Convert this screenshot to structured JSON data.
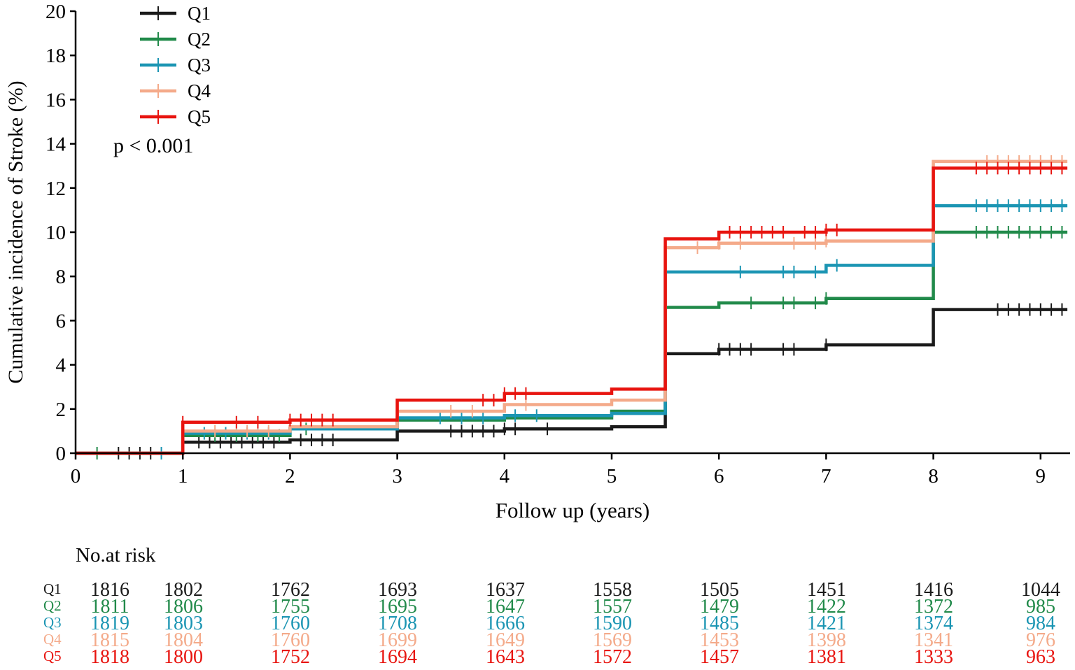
{
  "chart_data": {
    "type": "line",
    "subtype": "kaplan-meier-cumulative-incidence",
    "title": "",
    "xlabel": "Follow up (years)",
    "ylabel": "Cumulative incidence of Stroke (%)",
    "xlim": [
      0,
      9.25
    ],
    "ylim": [
      0,
      20
    ],
    "xticks": [
      "0",
      "1",
      "2",
      "3",
      "4",
      "5",
      "6",
      "7",
      "8",
      "9"
    ],
    "yticks": [
      "0",
      "2",
      "4",
      "6",
      "8",
      "10",
      "12",
      "14",
      "16",
      "18",
      "20"
    ],
    "annotation": "p < 0.001",
    "legend_position": "top-left",
    "colors": {
      "Q1": "#1a1a1a",
      "Q2": "#218a4a",
      "Q3": "#1b95b3",
      "Q4": "#f4aa8a",
      "Q5": "#e8140f"
    },
    "series": [
      {
        "name": "Q1",
        "steps": [
          [
            0,
            0
          ],
          [
            1,
            0.5
          ],
          [
            2,
            0.6
          ],
          [
            3,
            1.0
          ],
          [
            4,
            1.1
          ],
          [
            5,
            1.2
          ],
          [
            5.5,
            1.6
          ],
          [
            5.5,
            4.5
          ],
          [
            6,
            4.7
          ],
          [
            7,
            4.9
          ],
          [
            8,
            6.5
          ],
          [
            9.25,
            6.5
          ]
        ],
        "censor_x": [
          0.4,
          0.5,
          0.6,
          0.7,
          1.15,
          1.25,
          1.35,
          1.45,
          1.55,
          1.65,
          1.75,
          1.85,
          2.1,
          2.2,
          2.3,
          2.4,
          3.5,
          3.6,
          3.7,
          3.8,
          3.9,
          4.0,
          4.1,
          4.4,
          6.0,
          6.1,
          6.2,
          6.3,
          6.6,
          6.7,
          7.0,
          8.6,
          8.7,
          8.8,
          8.9,
          9.0,
          9.1,
          9.2
        ]
      },
      {
        "name": "Q2",
        "steps": [
          [
            0,
            0
          ],
          [
            1,
            0.8
          ],
          [
            2,
            1.1
          ],
          [
            3,
            1.5
          ],
          [
            4,
            1.6
          ],
          [
            5,
            1.9
          ],
          [
            5.5,
            6.6
          ],
          [
            6,
            6.8
          ],
          [
            7,
            7.0
          ],
          [
            8,
            10.0
          ],
          [
            9.25,
            10.0
          ]
        ],
        "censor_x": [
          0.2,
          1.3,
          1.5,
          1.7,
          1.9,
          2.15,
          6.3,
          6.6,
          6.7,
          6.9,
          7.0,
          8.4,
          8.5,
          8.6,
          8.7,
          8.8,
          8.9,
          9.0,
          9.1,
          9.2
        ]
      },
      {
        "name": "Q3",
        "steps": [
          [
            0,
            0
          ],
          [
            1,
            0.9
          ],
          [
            2,
            1.1
          ],
          [
            3,
            1.6
          ],
          [
            4,
            1.7
          ],
          [
            5,
            1.8
          ],
          [
            5.5,
            8.2
          ],
          [
            7,
            8.5
          ],
          [
            8,
            11.2
          ],
          [
            9.25,
            11.2
          ]
        ],
        "censor_x": [
          0.8,
          1.2,
          1.4,
          1.6,
          1.8,
          3.4,
          3.6,
          3.8,
          4.1,
          4.3,
          6.2,
          6.6,
          6.7,
          6.9,
          7.1,
          8.4,
          8.5,
          8.6,
          8.7,
          8.8,
          8.9,
          9.0,
          9.1,
          9.2
        ]
      },
      {
        "name": "Q4",
        "steps": [
          [
            0,
            0
          ],
          [
            1,
            1.0
          ],
          [
            2,
            1.2
          ],
          [
            3,
            1.9
          ],
          [
            4,
            2.2
          ],
          [
            5,
            2.4
          ],
          [
            5.5,
            9.3
          ],
          [
            6,
            9.5
          ],
          [
            7,
            9.6
          ],
          [
            8,
            13.2
          ],
          [
            9.25,
            13.2
          ]
        ],
        "censor_x": [
          1.3,
          1.6,
          1.8,
          3.5,
          3.7,
          4.2,
          5.8,
          6.0,
          6.2,
          6.7,
          6.9,
          7.0,
          8.5,
          8.6,
          8.7,
          8.8,
          8.9,
          9.0,
          9.1,
          9.2
        ]
      },
      {
        "name": "Q5",
        "steps": [
          [
            0,
            0
          ],
          [
            1,
            1.4
          ],
          [
            2,
            1.5
          ],
          [
            3,
            2.4
          ],
          [
            4,
            2.7
          ],
          [
            5,
            2.9
          ],
          [
            5.5,
            9.7
          ],
          [
            6,
            10.0
          ],
          [
            7,
            10.1
          ],
          [
            8,
            12.9
          ],
          [
            9.25,
            12.9
          ]
        ],
        "censor_x": [
          1.0,
          1.5,
          1.7,
          2.0,
          2.1,
          2.2,
          2.3,
          2.4,
          3.8,
          3.9,
          4.0,
          4.1,
          4.2,
          6.1,
          6.2,
          6.3,
          6.4,
          6.5,
          6.6,
          6.8,
          6.9,
          7.0,
          7.1,
          8.4,
          8.5,
          8.6,
          8.7,
          8.8,
          8.9,
          9.0,
          9.1,
          9.2
        ]
      }
    ],
    "risk_table": {
      "title": "No.at risk",
      "time_points": [
        0,
        1,
        2,
        3,
        4,
        5,
        6,
        7,
        8,
        9
      ],
      "rows": [
        {
          "name": "Q1",
          "values": [
            "1816",
            "1802",
            "1762",
            "1693",
            "1637",
            "1558",
            "1505",
            "1451",
            "1416",
            "1044"
          ]
        },
        {
          "name": "Q2",
          "values": [
            "1811",
            "1806",
            "1755",
            "1695",
            "1647",
            "1557",
            "1479",
            "1422",
            "1372",
            "985"
          ]
        },
        {
          "name": "Q3",
          "values": [
            "1819",
            "1803",
            "1760",
            "1708",
            "1666",
            "1590",
            "1485",
            "1421",
            "1374",
            "984"
          ]
        },
        {
          "name": "Q4",
          "values": [
            "1815",
            "1804",
            "1760",
            "1699",
            "1649",
            "1569",
            "1453",
            "1398",
            "1341",
            "976"
          ]
        },
        {
          "name": "Q5",
          "values": [
            "1818",
            "1800",
            "1752",
            "1694",
            "1643",
            "1572",
            "1457",
            "1381",
            "1333",
            "963"
          ]
        }
      ]
    }
  }
}
